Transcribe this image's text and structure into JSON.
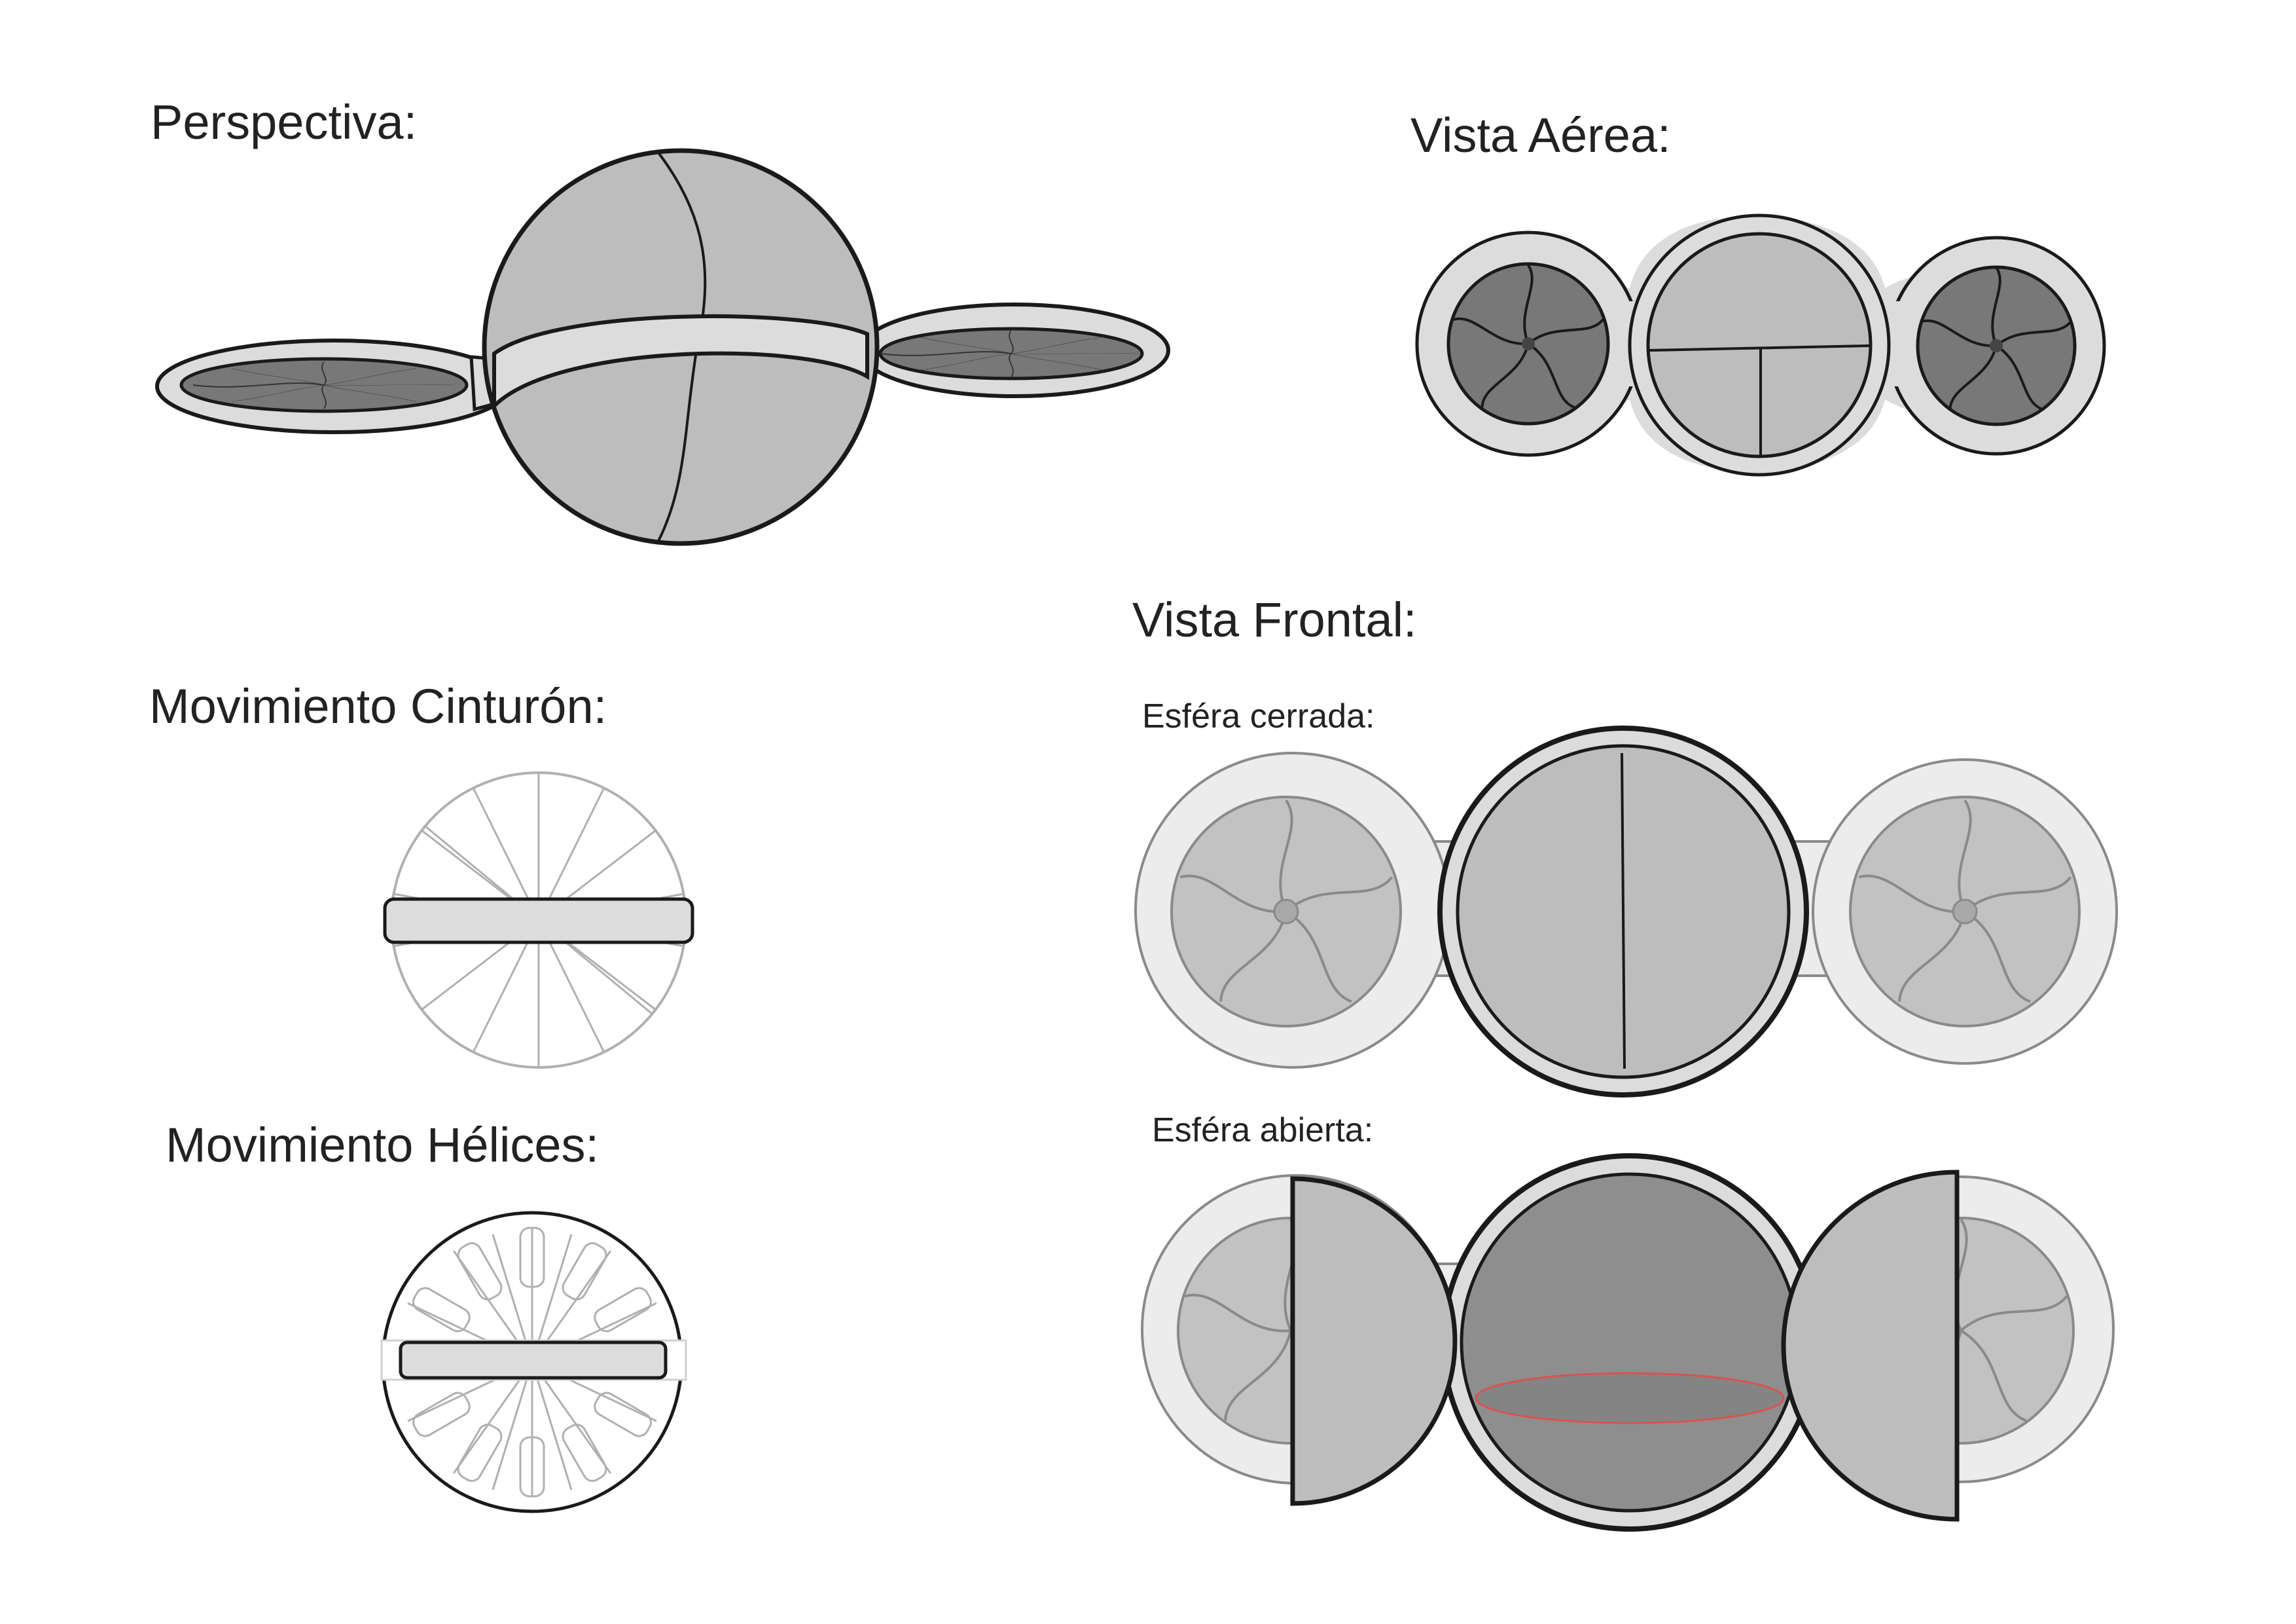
{
  "labels": {
    "perspectiva": "Perspectiva:",
    "vista_aerea": "Vista Aérea:",
    "vista_frontal": "Vista Frontal:",
    "movimiento_cinturon": "Movimiento Cinturón:",
    "movimiento_helices": "Movimiento Hélices:",
    "esfera_cerrada": "Esféra cerrada:",
    "esfera_abierta": "Esféra abierta:"
  },
  "colors": {
    "ink": "#1a1a1a",
    "shell": "#bdbdbd",
    "ring": "#dcdcdc",
    "rotor_dark": "#787878",
    "light_ring": "#ececec",
    "light_rotor": "#c2c2c2",
    "interior": "#8e8e8e",
    "accent_red": "#d9534f"
  },
  "icons": [
    "propeller-icon",
    "sphere-icon",
    "belt-icon"
  ]
}
